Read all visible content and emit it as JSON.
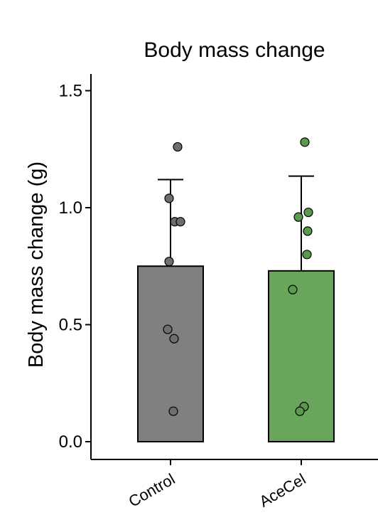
{
  "chart_data": {
    "type": "bar",
    "title": "Body mass change",
    "xlabel": "",
    "ylabel": "Body mass change (g)",
    "ylim": [
      0,
      1.55
    ],
    "yticks": [
      "0.0",
      "0.5",
      "1.0",
      "1.5"
    ],
    "ytick_values": [
      0,
      0.5,
      1.0,
      1.5
    ],
    "categories": [
      "Control",
      "AceCel"
    ],
    "values": [
      0.75,
      0.73
    ],
    "error_upper": [
      1.12,
      1.135
    ],
    "colors": [
      "#808080",
      "#6aa55c"
    ],
    "point_colors": [
      "#6e6e6e",
      "#5a9a4c"
    ],
    "points": [
      [
        1.26,
        1.04,
        0.94,
        0.94,
        0.77,
        0.48,
        0.44,
        0.13
      ],
      [
        1.28,
        0.98,
        0.96,
        0.9,
        0.8,
        0.65,
        0.15,
        0.13
      ]
    ],
    "grid": false,
    "legend": "none"
  }
}
